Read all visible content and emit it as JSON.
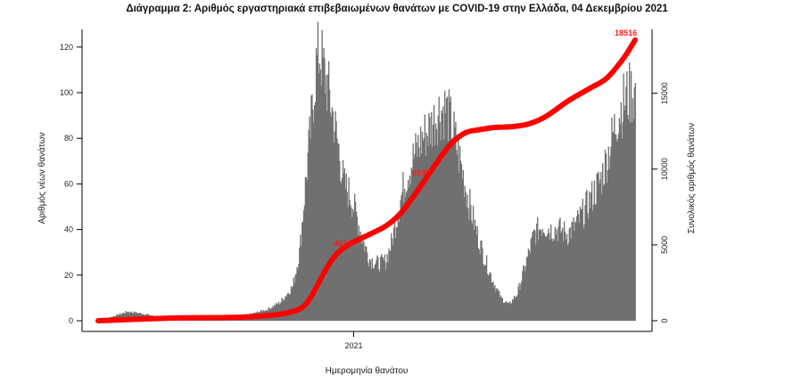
{
  "chart_data": {
    "type": "bar",
    "title": "Διάγραμμα 2: Αριθμός εργαστηριακά επιβεβαιωμένων θανάτων με COVID-19 στην Ελλάδα, 04 Δεκεμβρίου 2021",
    "xlabel": "Ημερομηνία θανάτου",
    "ylabel": "Αριθμός νέων θανάτων",
    "y2label": "Συνολικός αριθμός θανάτων",
    "x_tick_labels": [
      "2021"
    ],
    "x_tick_dates": [
      "2021-01-01"
    ],
    "xlim": [
      "2020-03-01",
      "2021-12-04"
    ],
    "ylim": [
      0,
      125
    ],
    "y_ticks": [
      0,
      20,
      40,
      60,
      80,
      100,
      120
    ],
    "y2lim": [
      0,
      18800
    ],
    "y2_ticks": [
      0,
      5000,
      10000,
      15000
    ],
    "y2_tick_labels": [
      "0",
      "5000",
      "10000",
      "15000"
    ],
    "grid": false,
    "bar_color": "#707070",
    "line_color": "#ff0000",
    "series": [
      {
        "name": "",
        "kind": "bar",
        "anchors": [
          [
            "2020-03-01",
            0
          ],
          [
            "2020-03-20",
            2
          ],
          [
            "2020-04-05",
            4
          ],
          [
            "2020-04-25",
            3
          ],
          [
            "2020-05-20",
            1
          ],
          [
            "2020-06-20",
            1
          ],
          [
            "2020-07-20",
            1
          ],
          [
            "2020-08-15",
            2
          ],
          [
            "2020-09-01",
            3
          ],
          [
            "2020-09-20",
            5
          ],
          [
            "2020-10-05",
            8
          ],
          [
            "2020-10-20",
            15
          ],
          [
            "2020-10-28",
            30
          ],
          [
            "2020-11-03",
            55
          ],
          [
            "2020-11-08",
            75
          ],
          [
            "2020-11-13",
            95
          ],
          [
            "2020-11-17",
            112
          ],
          [
            "2020-11-21",
            118
          ],
          [
            "2020-11-26",
            110
          ],
          [
            "2020-12-02",
            100
          ],
          [
            "2020-12-08",
            88
          ],
          [
            "2020-12-14",
            75
          ],
          [
            "2020-12-20",
            60
          ],
          [
            "2020-12-28",
            55
          ],
          [
            "2021-01-05",
            45
          ],
          [
            "2021-01-12",
            35
          ],
          [
            "2021-01-20",
            27
          ],
          [
            "2021-01-30",
            25
          ],
          [
            "2021-02-08",
            26
          ],
          [
            "2021-02-16",
            35
          ],
          [
            "2021-02-24",
            50
          ],
          [
            "2021-03-04",
            62
          ],
          [
            "2021-03-14",
            72
          ],
          [
            "2021-03-24",
            80
          ],
          [
            "2021-04-03",
            85
          ],
          [
            "2021-04-13",
            92
          ],
          [
            "2021-04-21",
            93
          ],
          [
            "2021-04-29",
            85
          ],
          [
            "2021-05-07",
            72
          ],
          [
            "2021-05-17",
            55
          ],
          [
            "2021-05-27",
            40
          ],
          [
            "2021-06-06",
            28
          ],
          [
            "2021-06-16",
            18
          ],
          [
            "2021-06-26",
            10
          ],
          [
            "2021-07-06",
            7
          ],
          [
            "2021-07-16",
            12
          ],
          [
            "2021-07-26",
            25
          ],
          [
            "2021-08-05",
            38
          ],
          [
            "2021-08-15",
            42
          ],
          [
            "2021-08-25",
            40
          ],
          [
            "2021-09-04",
            40
          ],
          [
            "2021-09-14",
            38
          ],
          [
            "2021-09-24",
            42
          ],
          [
            "2021-10-04",
            48
          ],
          [
            "2021-10-14",
            55
          ],
          [
            "2021-10-24",
            62
          ],
          [
            "2021-11-03",
            75
          ],
          [
            "2021-11-13",
            90
          ],
          [
            "2021-11-23",
            98
          ],
          [
            "2021-11-30",
            100
          ],
          [
            "2021-12-04",
            100
          ]
        ]
      },
      {
        "name": "",
        "kind": "line",
        "axis": "right",
        "points": [
          [
            "2020-03-01",
            0
          ],
          [
            "2020-06-01",
            180
          ],
          [
            "2020-08-01",
            210
          ],
          [
            "2020-09-01",
            270
          ],
          [
            "2020-10-01",
            400
          ],
          [
            "2020-10-20",
            600
          ],
          [
            "2020-11-01",
            900
          ],
          [
            "2020-11-10",
            1500
          ],
          [
            "2020-11-20",
            2500
          ],
          [
            "2020-12-01",
            3600
          ],
          [
            "2020-12-10",
            4300
          ],
          [
            "2020-12-20",
            4800
          ],
          [
            "2021-01-01",
            5200
          ],
          [
            "2021-01-20",
            5700
          ],
          [
            "2021-02-10",
            6300
          ],
          [
            "2021-02-28",
            7200
          ],
          [
            "2021-03-20",
            8700
          ],
          [
            "2021-04-10",
            10400
          ],
          [
            "2021-04-28",
            11700
          ],
          [
            "2021-05-15",
            12400
          ],
          [
            "2021-06-01",
            12600
          ],
          [
            "2021-06-20",
            12750
          ],
          [
            "2021-07-10",
            12800
          ],
          [
            "2021-07-31",
            13000
          ],
          [
            "2021-08-20",
            13500
          ],
          [
            "2021-09-15",
            14500
          ],
          [
            "2021-10-10",
            15300
          ],
          [
            "2021-10-31",
            16000
          ],
          [
            "2021-11-20",
            17300
          ],
          [
            "2021-12-04",
            18516
          ]
        ]
      }
    ],
    "annotations": [
      {
        "text": "4620",
        "date": "2020-12-21",
        "value": 4620
      },
      {
        "text": "9297",
        "date": "2021-03-25",
        "value": 9297
      },
      {
        "text": "18516",
        "date": "2021-11-25",
        "value": 18516
      }
    ]
  }
}
